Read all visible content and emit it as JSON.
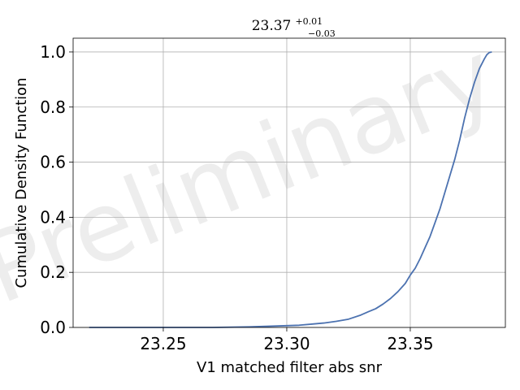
{
  "chart_data": {
    "type": "line",
    "title": {
      "main": "23.37",
      "sup": "+0.01",
      "sub": "−0.03"
    },
    "xlabel": "V1 matched filter abs snr",
    "ylabel": "Cumulative Density Function",
    "xlim": [
      23.2135,
      23.3885
    ],
    "ylim": [
      0.0,
      1.05
    ],
    "xticks": [
      23.25,
      23.3,
      23.35
    ],
    "xtick_labels": [
      "23.25",
      "23.30",
      "23.35"
    ],
    "yticks": [
      0.0,
      0.2,
      0.4,
      0.6,
      0.8,
      1.0
    ],
    "ytick_labels": [
      "0.0",
      "0.2",
      "0.4",
      "0.6",
      "0.8",
      "1.0"
    ],
    "grid": true,
    "line_color": "#4c72b0",
    "grid_color": "#b0b0b0",
    "watermark": "Preliminary",
    "series": [
      {
        "x": [
          23.22,
          23.25,
          23.27,
          23.285,
          23.295,
          23.305,
          23.31,
          23.315,
          23.32,
          23.325,
          23.33,
          23.333,
          23.336,
          23.339,
          23.342,
          23.345,
          23.348,
          23.35,
          23.352,
          23.354,
          23.356,
          23.358,
          23.36,
          23.362,
          23.364,
          23.366,
          23.368,
          23.37,
          23.372,
          23.374,
          23.376,
          23.378,
          23.38,
          23.381,
          23.382,
          23.383
        ],
        "y": [
          0.0,
          0.0,
          0.0,
          0.002,
          0.005,
          0.008,
          0.012,
          0.016,
          0.022,
          0.03,
          0.045,
          0.057,
          0.068,
          0.085,
          0.105,
          0.13,
          0.16,
          0.19,
          0.215,
          0.25,
          0.29,
          0.33,
          0.38,
          0.43,
          0.49,
          0.55,
          0.61,
          0.68,
          0.76,
          0.83,
          0.89,
          0.94,
          0.975,
          0.99,
          0.998,
          1.0
        ]
      }
    ]
  }
}
